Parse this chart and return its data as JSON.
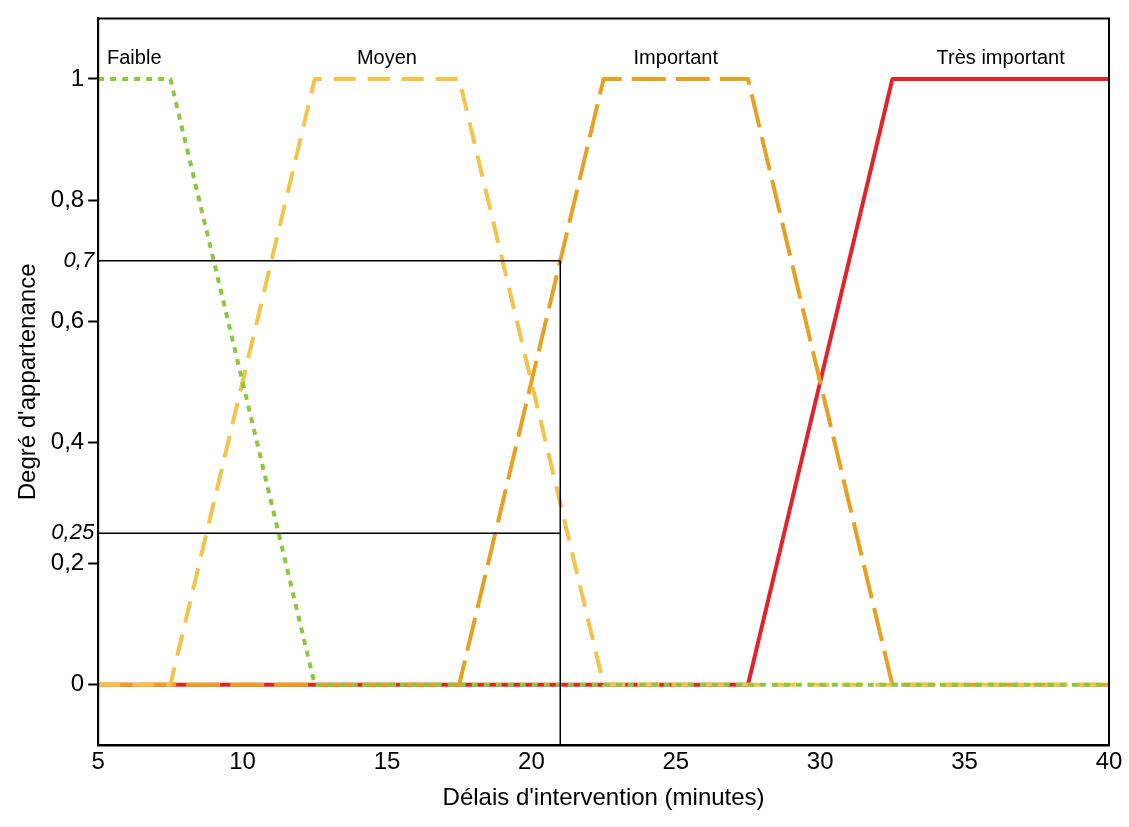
{
  "chart_data": {
    "type": "line",
    "xlabel": "Délais d'intervention (minutes)",
    "ylabel": "Degré d'appartenance",
    "xlim": [
      5,
      40
    ],
    "xticks": [
      5,
      10,
      15,
      20,
      25,
      30,
      35,
      40
    ],
    "ylim": [
      -0.1,
      1.1
    ],
    "yticks": [
      {
        "value": 0,
        "label": "0"
      },
      {
        "value": 0.2,
        "label": "0,2"
      },
      {
        "value": 0.4,
        "label": "0,4"
      },
      {
        "value": 0.6,
        "label": "0,6"
      },
      {
        "value": 0.8,
        "label": "0,8"
      },
      {
        "value": 1,
        "label": "1"
      }
    ],
    "grid": false,
    "legend": false,
    "marker": "none",
    "series": [
      {
        "name": "Faible",
        "color": "#8dc63f",
        "line_style": "dotted",
        "x": [
          5,
          7.5,
          12.5,
          40
        ],
        "values": [
          1,
          1,
          0,
          0
        ]
      },
      {
        "name": "Moyen",
        "color": "#f5c24a",
        "line_style": "dashed",
        "x": [
          5,
          7.5,
          12.5,
          17.5,
          22.5,
          40
        ],
        "values": [
          0,
          0,
          1,
          1,
          0,
          0
        ]
      },
      {
        "name": "Important",
        "color": "#e8a021",
        "line_style": "dashed",
        "x": [
          5,
          17.5,
          22.5,
          27.5,
          32.5,
          40
        ],
        "values": [
          0,
          0,
          1,
          1,
          0,
          0
        ]
      },
      {
        "name": "Très important",
        "color": "#e3222a",
        "line_style": "solid",
        "x": [
          5,
          27.5,
          32.5,
          40
        ],
        "values": [
          0,
          0,
          1,
          1
        ]
      }
    ],
    "ref_lines": [
      {
        "axis": "y",
        "value": 0.7,
        "label": "0,7",
        "color": "#000000"
      },
      {
        "axis": "y",
        "value": 0.25,
        "label": "0,25",
        "color": "#000000"
      },
      {
        "axis": "x",
        "value": 21,
        "label": null,
        "color": "#000000"
      }
    ]
  }
}
